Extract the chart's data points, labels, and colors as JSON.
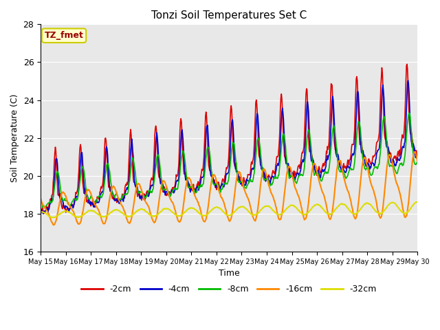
{
  "title": "Tonzi Soil Temperatures Set C",
  "xlabel": "Time",
  "ylabel": "Soil Temperature (C)",
  "ylim": [
    16,
    28
  ],
  "xlim": [
    0,
    360
  ],
  "annotation_text": "TZ_fmet",
  "annotation_bg": "#ffffcc",
  "annotation_border": "#cccc00",
  "annotation_text_color": "#990000",
  "series": [
    {
      "label": "-2cm",
      "color": "#dd0000",
      "lw": 1.2
    },
    {
      "label": "-4cm",
      "color": "#0000cc",
      "lw": 1.2
    },
    {
      "label": "-8cm",
      "color": "#00bb00",
      "lw": 1.2
    },
    {
      "label": "-16cm",
      "color": "#ff8800",
      "lw": 1.5
    },
    {
      "label": "-32cm",
      "color": "#dddd00",
      "lw": 1.5
    }
  ],
  "background_color": "#e8e8e8",
  "tick_dates": [
    "May 15",
    "May 16",
    "May 17",
    "May 18",
    "May 19",
    "May 20",
    "May 21",
    "May 22",
    "May 23",
    "May 24",
    "May 25",
    "May 26",
    "May 27",
    "May 28",
    "May 29",
    "May 30"
  ],
  "tick_positions": [
    0,
    24,
    48,
    72,
    96,
    120,
    144,
    168,
    192,
    216,
    240,
    264,
    288,
    312,
    336,
    360
  ],
  "figsize": [
    6.4,
    4.8
  ],
  "dpi": 100
}
